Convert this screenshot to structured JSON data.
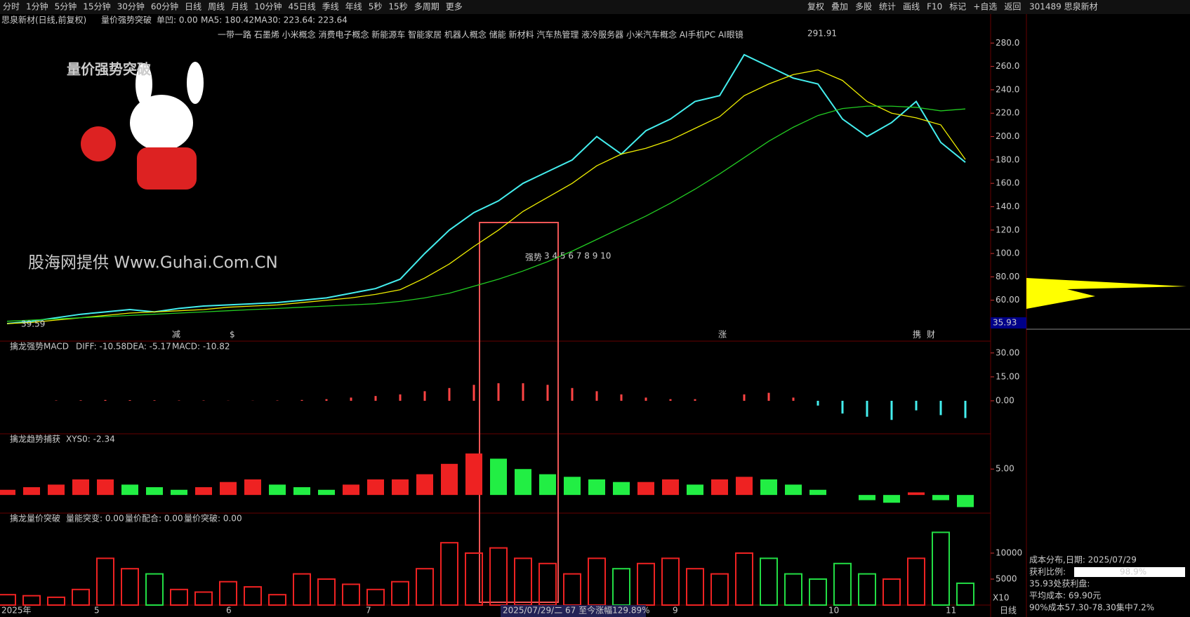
{
  "toolbar": {
    "left": [
      "分时",
      "1分钟",
      "5分钟",
      "15分钟",
      "30分钟",
      "60分钟",
      "日线",
      "周线",
      "月线",
      "10分钟",
      "45日线",
      "季线",
      "年线",
      "5秒",
      "15秒",
      "多周期",
      "更多"
    ],
    "right": [
      "复权",
      "叠加",
      "多股",
      "统计",
      "画线",
      "F10",
      "标记",
      "+自选",
      "返回"
    ],
    "code": "301489 思泉新材"
  },
  "header": {
    "name": "思泉新材(日线,前复权)",
    "indicator": "量价强势突破",
    "single": "单凹: 0.00",
    "ma5": "MA5: 180.42",
    "ma30": "MA30: 223.64",
    "extra": ": 223.64",
    "concepts": "一带一路 石墨烯 小米概念 消费电子概念 新能源车 智能家居 机器人概念 储能 新材料 汽车热管理 液冷服务器 小米汽车概念 AI手机PC AI眼镜"
  },
  "watermark": "股海网提供 Www.Guhai.Com.CN",
  "badge": "量价强势突破",
  "price_chart": {
    "ylim": [
      25,
      294
    ],
    "yticks": [
      {
        "value": 280,
        "label": "280.0"
      },
      {
        "value": 260,
        "label": "260.0"
      },
      {
        "value": 240,
        "label": "240.0"
      },
      {
        "value": 220,
        "label": "220.0"
      },
      {
        "value": 200,
        "label": "200.0"
      },
      {
        "value": 180,
        "label": "180.0"
      },
      {
        "value": 160,
        "label": "160.0"
      },
      {
        "value": 140,
        "label": "140.0"
      },
      {
        "value": 120,
        "label": "120.0"
      },
      {
        "value": 100,
        "label": "100.0"
      },
      {
        "value": 80,
        "label": "80.00"
      },
      {
        "value": 60,
        "label": "60.00"
      }
    ],
    "close": [
      40,
      42,
      45,
      48,
      50,
      52,
      50,
      53,
      55,
      56,
      57,
      58,
      60,
      62,
      66,
      70,
      78,
      100,
      120,
      135,
      145,
      160,
      170,
      180,
      200,
      185,
      205,
      215,
      230,
      235,
      270,
      260,
      250,
      245,
      215,
      200,
      212,
      230,
      195,
      178
    ],
    "ma5": [
      40,
      41,
      43,
      45,
      47,
      49,
      50,
      51,
      52,
      54,
      55,
      56,
      58,
      60,
      62,
      65,
      69,
      79,
      91,
      106,
      120,
      136,
      148,
      160,
      175,
      185,
      190,
      197,
      207,
      217,
      235,
      245,
      253,
      257,
      248,
      230,
      220,
      216,
      210,
      180.42
    ],
    "ma30": [
      42,
      43,
      44,
      45,
      46,
      47,
      48,
      49,
      50,
      51,
      52,
      53,
      54,
      55,
      56,
      57,
      59,
      62,
      66,
      72,
      78,
      85,
      93,
      102,
      112,
      122,
      132,
      143,
      155,
      168,
      182,
      196,
      208,
      218,
      224,
      226,
      226,
      225,
      222,
      223.64
    ],
    "high_label": "291.91",
    "low_label": "39.59",
    "last_label": "35.93",
    "signal": "强势",
    "count": "3 4 5 6 7 8 9 10",
    "events": [
      "减",
      "$",
      "涨",
      "携",
      "财"
    ]
  },
  "macd": {
    "title": "擒龙强势MACD",
    "diff": "DIFF: -10.58",
    "dea": "DEA: -5.17",
    "macd": "MACD: -10.82",
    "ylim": [
      -20.7,
      37.4
    ],
    "yticks": [
      {
        "value": 30,
        "label": "30.00"
      },
      {
        "value": 15,
        "label": "15.00"
      },
      {
        "value": 0,
        "label": "0.00"
      }
    ],
    "values": [
      0,
      0,
      0.2,
      0.3,
      0.5,
      0.4,
      0.3,
      0.2,
      0.2,
      0.1,
      0.1,
      0.2,
      0.5,
      1,
      2,
      3,
      4,
      6,
      8,
      10,
      11,
      11,
      10,
      8,
      6,
      4,
      2,
      1,
      1,
      0,
      4,
      5,
      2,
      -3,
      -8,
      -10,
      -12,
      -6,
      -9,
      -10.82
    ]
  },
  "xys": {
    "title": "擒龙趋势捕获",
    "label": "XYS0: -2.34",
    "ylim": [
      -3.5,
      11.8
    ],
    "yticks": [
      {
        "value": 5,
        "label": "5.00"
      }
    ],
    "values": [
      1,
      1.5,
      2,
      3,
      3,
      2,
      1.5,
      1,
      1.5,
      2.5,
      3,
      2,
      1.5,
      1,
      2,
      3,
      3,
      4,
      6,
      8,
      7,
      5,
      4,
      3.5,
      3,
      2.5,
      2.5,
      3,
      2,
      3,
      3.5,
      3,
      2,
      1,
      0,
      -1,
      -1.5,
      0.5,
      -1,
      -2.34
    ]
  },
  "volume": {
    "title": "擒龙量价突破",
    "a": "量能突变: 0.00",
    "b": "量价配合: 0.00",
    "c": "量价突破: 0.00",
    "ylim": [
      0,
      17700
    ],
    "yticks": [
      10000,
      5000
    ],
    "unit": "X10",
    "values": [
      2000,
      1800,
      1500,
      3000,
      9000,
      7000,
      6000,
      3000,
      2500,
      4500,
      3500,
      2000,
      6000,
      5000,
      4000,
      3000,
      4500,
      7000,
      12000,
      10000,
      11000,
      9000,
      8000,
      6000,
      9000,
      7000,
      8000,
      9000,
      7000,
      6000,
      10000,
      9000,
      6000,
      5000,
      8000,
      6000,
      5000,
      9000,
      14000,
      4200
    ]
  },
  "xaxis": {
    "labels": [
      "2025年",
      "5",
      "6",
      "7",
      "9",
      "10",
      "11"
    ],
    "highlight": "2025/07/29/二 67 至今涨幅129.89%",
    "period": "日线"
  },
  "cost": {
    "title": "成本分布,日期: 2025/07/29",
    "ratio_label": "获利比例:",
    "ratio": "98.9%",
    "line1": "35.93处获利盘:",
    "line2": "平均成本: 69.90元",
    "line3": "90%成本57.30-78.30集中7.2%"
  }
}
